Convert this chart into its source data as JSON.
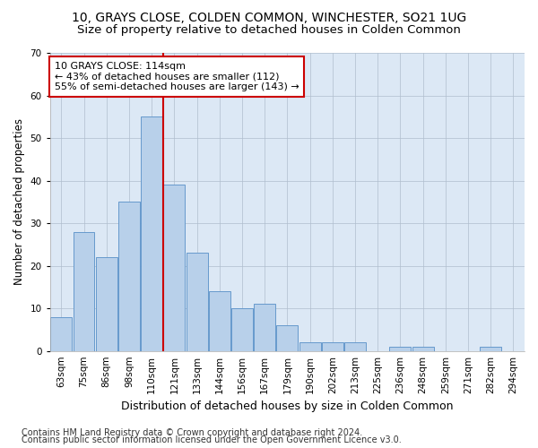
{
  "title1": "10, GRAYS CLOSE, COLDEN COMMON, WINCHESTER, SO21 1UG",
  "title2": "Size of property relative to detached houses in Colden Common",
  "xlabel": "Distribution of detached houses by size in Colden Common",
  "ylabel": "Number of detached properties",
  "categories": [
    "63sqm",
    "75sqm",
    "86sqm",
    "98sqm",
    "110sqm",
    "121sqm",
    "133sqm",
    "144sqm",
    "156sqm",
    "167sqm",
    "179sqm",
    "190sqm",
    "202sqm",
    "213sqm",
    "225sqm",
    "236sqm",
    "248sqm",
    "259sqm",
    "271sqm",
    "282sqm",
    "294sqm"
  ],
  "values": [
    8,
    28,
    22,
    35,
    55,
    39,
    23,
    14,
    10,
    11,
    6,
    2,
    2,
    2,
    0,
    1,
    1,
    0,
    0,
    1,
    0
  ],
  "bar_color": "#b8d0ea",
  "bar_edge_color": "#6699cc",
  "vline_x": 4.5,
  "vline_color": "#cc0000",
  "annotation_line1": "10 GRAYS CLOSE: 114sqm",
  "annotation_line2": "← 43% of detached houses are smaller (112)",
  "annotation_line3": "55% of semi-detached houses are larger (143) →",
  "annotation_box_color": "#ffffff",
  "annotation_box_edge": "#cc0000",
  "ylim": [
    0,
    70
  ],
  "yticks": [
    0,
    10,
    20,
    30,
    40,
    50,
    60,
    70
  ],
  "footer1": "Contains HM Land Registry data © Crown copyright and database right 2024.",
  "footer2": "Contains public sector information licensed under the Open Government Licence v3.0.",
  "plot_bg_color": "#dce8f5",
  "title1_fontsize": 10,
  "title2_fontsize": 9.5,
  "xlabel_fontsize": 9,
  "ylabel_fontsize": 8.5,
  "tick_fontsize": 7.5,
  "footer_fontsize": 7,
  "annotation_fontsize": 8
}
